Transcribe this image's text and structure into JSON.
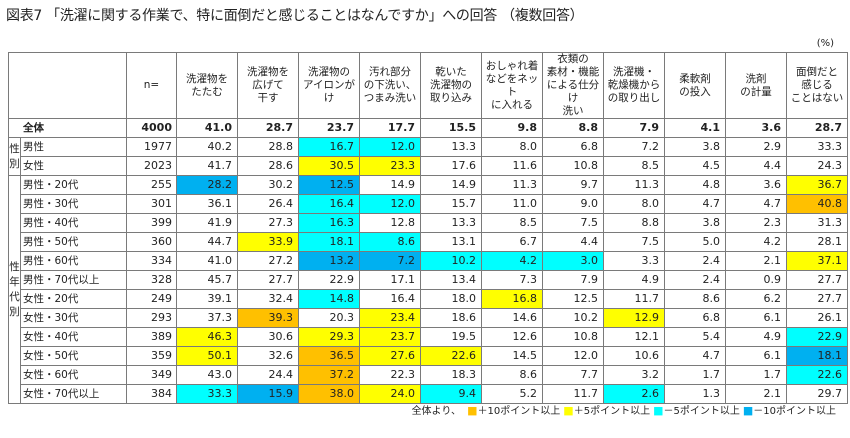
{
  "title": "図表7 「洗濯に関する作業で、特に面倒だと感じることはなんですか」への回答 （複数回答）",
  "unit": "(%)",
  "n_label": "n=",
  "colors": {
    "plus10": "#FFC000",
    "plus5": "#FFFF00",
    "minus5": "#00FFFF",
    "minus10": "#00B0F0"
  },
  "chart_data": {
    "type": "table",
    "columns": [
      "洗濯物を\nたたむ",
      "洗濯物を\n広げて\n干す",
      "洗濯物の\nアイロンがけ",
      "汚れ部分\nの下洗い、\nつまみ洗い",
      "乾いた\n洗濯物の\n取り込み",
      "おしゃれ着\nなどをネット\nに入れる",
      "衣類の\n素材・機能\nによる仕分け\n洗い",
      "洗濯機・\n乾燥機から\nの取り出し",
      "柔軟剤\nの投入",
      "洗剤\nの計量",
      "面倒だと\n感じる\nことはない"
    ],
    "groups": [
      {
        "label": "",
        "rows": [
          {
            "label": "全体",
            "n": "4000",
            "values": [
              "41.0",
              "28.7",
              "23.7",
              "17.7",
              "15.5",
              "9.8",
              "8.8",
              "7.9",
              "4.1",
              "3.6",
              "28.7"
            ],
            "hl": [
              "",
              "",
              "",
              "",
              "",
              "",
              "",
              "",
              "",
              "",
              ""
            ]
          }
        ]
      },
      {
        "label": "性\n別",
        "rows": [
          {
            "label": "男性",
            "n": "1977",
            "values": [
              "40.2",
              "28.8",
              "16.7",
              "12.0",
              "13.3",
              "8.0",
              "6.8",
              "7.2",
              "3.8",
              "2.9",
              "33.3"
            ],
            "hl": [
              "",
              "",
              "m5",
              "m5",
              "",
              "",
              "",
              "",
              "",
              "",
              ""
            ]
          },
          {
            "label": "女性",
            "n": "2023",
            "values": [
              "41.7",
              "28.6",
              "30.5",
              "23.3",
              "17.6",
              "11.6",
              "10.8",
              "8.5",
              "4.5",
              "4.4",
              "24.3"
            ],
            "hl": [
              "",
              "",
              "p5",
              "p5",
              "",
              "",
              "",
              "",
              "",
              "",
              ""
            ]
          }
        ]
      },
      {
        "label": "性\n年\n代\n別",
        "rows": [
          {
            "label": "男性・20代",
            "n": "255",
            "values": [
              "28.2",
              "30.2",
              "12.5",
              "14.9",
              "14.9",
              "11.3",
              "9.7",
              "11.3",
              "4.8",
              "3.6",
              "36.7"
            ],
            "hl": [
              "m10",
              "",
              "m10",
              "",
              "",
              "",
              "",
              "",
              "",
              "",
              "p5"
            ]
          },
          {
            "label": "男性・30代",
            "n": "301",
            "values": [
              "36.1",
              "26.4",
              "16.4",
              "12.0",
              "15.7",
              "11.0",
              "9.0",
              "8.0",
              "4.7",
              "4.7",
              "40.8"
            ],
            "hl": [
              "",
              "",
              "m5",
              "m5",
              "",
              "",
              "",
              "",
              "",
              "",
              "p10"
            ]
          },
          {
            "label": "男性・40代",
            "n": "399",
            "values": [
              "41.9",
              "27.3",
              "16.3",
              "12.8",
              "13.3",
              "8.5",
              "7.5",
              "8.8",
              "3.8",
              "2.3",
              "31.3"
            ],
            "hl": [
              "",
              "",
              "m5",
              "",
              "",
              "",
              "",
              "",
              "",
              "",
              ""
            ]
          },
          {
            "label": "男性・50代",
            "n": "360",
            "values": [
              "44.7",
              "33.9",
              "18.1",
              "8.6",
              "13.1",
              "6.7",
              "4.4",
              "7.5",
              "5.0",
              "4.2",
              "28.1"
            ],
            "hl": [
              "",
              "p5",
              "m5",
              "m5",
              "",
              "",
              "",
              "",
              "",
              "",
              ""
            ]
          },
          {
            "label": "男性・60代",
            "n": "334",
            "values": [
              "41.0",
              "27.2",
              "13.2",
              "7.2",
              "10.2",
              "4.2",
              "3.0",
              "3.3",
              "2.4",
              "2.1",
              "37.1"
            ],
            "hl": [
              "",
              "",
              "m10",
              "m10",
              "m5",
              "m5",
              "m5",
              "",
              "",
              "",
              "p5"
            ]
          },
          {
            "label": "男性・70代以上",
            "n": "328",
            "values": [
              "45.7",
              "27.7",
              "22.9",
              "17.1",
              "13.4",
              "7.3",
              "7.9",
              "4.9",
              "2.4",
              "0.9",
              "27.7"
            ],
            "hl": [
              "",
              "",
              "",
              "",
              "",
              "",
              "",
              "",
              "",
              "",
              ""
            ]
          },
          {
            "label": "女性・20代",
            "n": "249",
            "values": [
              "39.1",
              "32.4",
              "14.8",
              "16.4",
              "18.0",
              "16.8",
              "12.5",
              "11.7",
              "8.6",
              "6.2",
              "27.7"
            ],
            "hl": [
              "",
              "",
              "m5",
              "",
              "",
              "p5",
              "",
              "",
              "",
              "",
              ""
            ]
          },
          {
            "label": "女性・30代",
            "n": "293",
            "values": [
              "37.3",
              "39.3",
              "20.3",
              "23.4",
              "18.6",
              "14.6",
              "10.2",
              "12.9",
              "6.8",
              "6.1",
              "26.1"
            ],
            "hl": [
              "",
              "p10",
              "",
              "p5",
              "",
              "",
              "",
              "p5",
              "",
              "",
              ""
            ]
          },
          {
            "label": "女性・40代",
            "n": "389",
            "values": [
              "46.3",
              "30.6",
              "29.3",
              "23.7",
              "19.5",
              "12.6",
              "10.8",
              "12.1",
              "5.4",
              "4.9",
              "22.9"
            ],
            "hl": [
              "p5",
              "",
              "p5",
              "p5",
              "",
              "",
              "",
              "",
              "",
              "",
              "m5"
            ]
          },
          {
            "label": "女性・50代",
            "n": "359",
            "values": [
              "50.1",
              "32.6",
              "36.5",
              "27.6",
              "22.6",
              "14.5",
              "12.0",
              "10.6",
              "4.7",
              "6.1",
              "18.1"
            ],
            "hl": [
              "p5",
              "",
              "p10",
              "p5",
              "p5",
              "",
              "",
              "",
              "",
              "",
              "m10"
            ]
          },
          {
            "label": "女性・60代",
            "n": "349",
            "values": [
              "43.0",
              "24.4",
              "37.2",
              "22.3",
              "18.3",
              "8.6",
              "7.7",
              "3.2",
              "1.7",
              "1.7",
              "22.6"
            ],
            "hl": [
              "",
              "",
              "p10",
              "",
              "",
              "",
              "",
              "",
              "",
              "",
              "m5"
            ]
          },
          {
            "label": "女性・70代以上",
            "n": "384",
            "values": [
              "33.3",
              "15.9",
              "38.0",
              "24.0",
              "9.4",
              "5.2",
              "11.7",
              "2.6",
              "1.3",
              "2.1",
              "29.7"
            ],
            "hl": [
              "m5",
              "m10",
              "p10",
              "p5",
              "m5",
              "",
              "",
              "m5",
              "",
              "",
              ""
            ]
          }
        ]
      }
    ]
  },
  "legend": {
    "prefix": "全体より、",
    "items": [
      {
        "key": "p10",
        "text": "＋10ポイント以上"
      },
      {
        "key": "p5",
        "text": "＋5ポイント以上"
      },
      {
        "key": "m5",
        "text": "－5ポイント以上"
      },
      {
        "key": "m10",
        "text": "－10ポイント以上"
      }
    ]
  }
}
